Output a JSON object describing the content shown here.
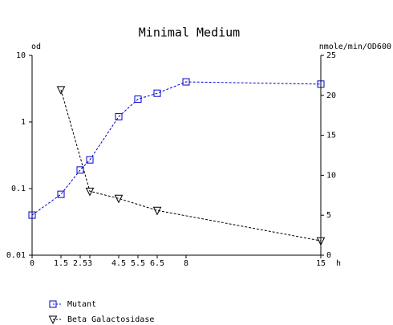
{
  "chart_data": {
    "type": "line",
    "title": "Minimal Medium",
    "y_label": "od",
    "y2_label": "nmole/min/OD600",
    "x_label": "h",
    "xlim": [
      0,
      15
    ],
    "xticks": [
      0,
      1.5,
      2.5,
      3,
      4.5,
      5.5,
      6.5,
      8,
      15
    ],
    "ylim": [
      0.01,
      10
    ],
    "yticks": [
      0.01,
      0.1,
      1,
      10
    ],
    "ylog": true,
    "y2lim": [
      0,
      25
    ],
    "y2ticks": [
      0,
      5,
      10,
      15,
      20,
      25
    ],
    "series": [
      {
        "name": "Mutant",
        "color": "#0000cc",
        "marker": "square",
        "x": [
          0,
          1.5,
          2.5,
          3,
          4.5,
          5.5,
          6.5,
          8,
          15
        ],
        "values": [
          0.04,
          0.082,
          0.19,
          0.27,
          1.2,
          2.2,
          2.7,
          4.0,
          3.7
        ]
      },
      {
        "name": "Beta Galactosidase",
        "color": "#000000",
        "marker": "triangle-down",
        "axis": "y2",
        "x": [
          1.5,
          3,
          4.5,
          6.5,
          15
        ],
        "values": [
          20.7,
          8.0,
          7.1,
          5.6,
          1.8
        ]
      }
    ]
  }
}
